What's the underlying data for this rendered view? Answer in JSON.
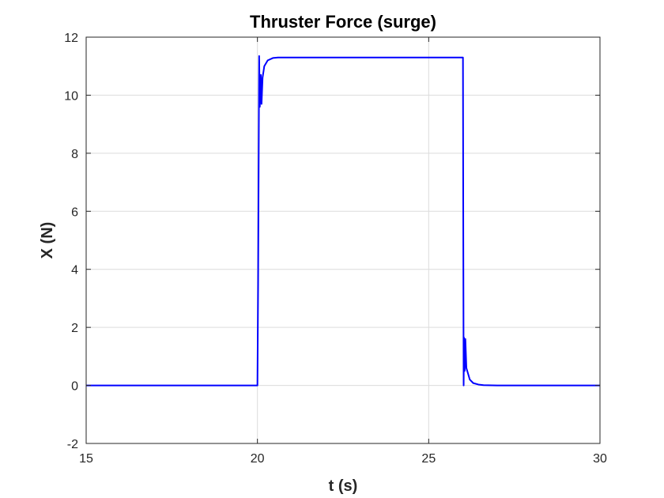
{
  "chart_data": {
    "type": "line",
    "title": "Thruster Force (surge)",
    "xlabel": "t (s)",
    "ylabel": "X (N)",
    "xlim": [
      15,
      30
    ],
    "ylim": [
      -2,
      12
    ],
    "xticks": [
      15,
      20,
      25,
      30
    ],
    "yticks": [
      -2,
      0,
      2,
      4,
      6,
      8,
      10,
      12
    ],
    "xtick_labels": [
      "15",
      "20",
      "25",
      "30"
    ],
    "ytick_labels": [
      "-2",
      "0",
      "2",
      "4",
      "6",
      "8",
      "10",
      "12"
    ],
    "grid": true,
    "series": [
      {
        "color": "#0000ff",
        "x": [
          15,
          20,
          20.02,
          20.05,
          20.07,
          20.1,
          20.12,
          20.15,
          20.2,
          20.3,
          20.45,
          20.6,
          25,
          26,
          26.01,
          26.02,
          26.03,
          26.05,
          26.07,
          26.1,
          26.15,
          26.2,
          26.3,
          26.45,
          26.6,
          27,
          30
        ],
        "y": [
          0,
          0,
          3.5,
          11.35,
          9.6,
          10.7,
          9.7,
          10.6,
          11.0,
          11.2,
          11.28,
          11.3,
          11.3,
          11.3,
          5.0,
          0.0,
          1.65,
          0.5,
          1.6,
          0.6,
          0.4,
          0.2,
          0.08,
          0.03,
          0.01,
          0,
          0
        ]
      }
    ]
  },
  "colors": {
    "line": "#0000ff",
    "grid": "#dcdcdc",
    "axes": "#262626",
    "background": "#ffffff"
  }
}
